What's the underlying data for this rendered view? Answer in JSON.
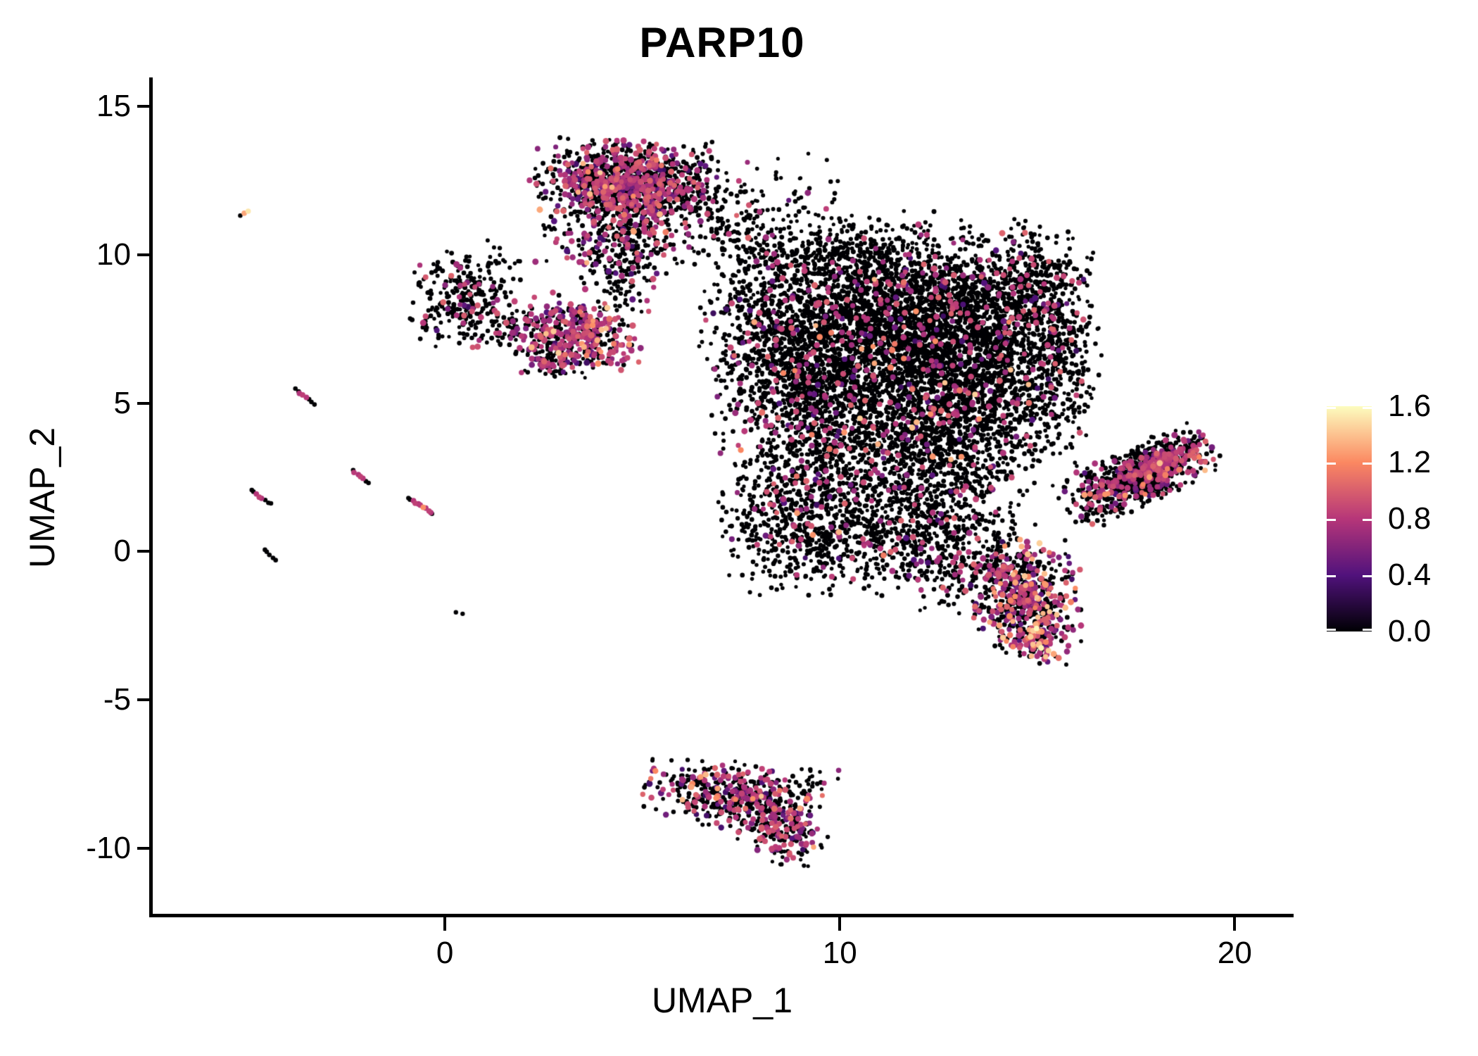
{
  "title": "PARP10",
  "x_axis": {
    "label": "UMAP_1",
    "tick_labels": [
      "0",
      "10",
      "20"
    ],
    "tick_values": [
      0,
      10,
      20
    ],
    "range": [
      -7.45,
      21.49
    ]
  },
  "y_axis": {
    "label": "UMAP_2",
    "tick_labels": [
      "15",
      "10",
      "5",
      "0",
      "-5",
      "-10"
    ],
    "tick_values": [
      15,
      10,
      5,
      0,
      -5,
      -10
    ],
    "range": [
      -12.26,
      15.93
    ]
  },
  "colorbar": {
    "tick_labels": [
      "1.6",
      "1.2",
      "0.8",
      "0.4",
      "0.0"
    ],
    "tick_values": [
      1.6,
      1.2,
      0.8,
      0.4,
      0.0
    ],
    "min": 0.0,
    "max": 1.6,
    "gradient_stops": [
      [
        "0.00",
        "#000004"
      ],
      [
        "0.25",
        "#51127c"
      ],
      [
        "0.50",
        "#b63679"
      ],
      [
        "0.75",
        "#fb8861"
      ],
      [
        "1.00",
        "#fcfdbf"
      ]
    ]
  },
  "chart_data": {
    "type": "scatter",
    "title": "PARP10",
    "xlabel": "UMAP_1",
    "ylabel": "UMAP_2",
    "xlim": [
      -7.45,
      21.49
    ],
    "ylim": [
      -12.26,
      15.93
    ],
    "grid": false,
    "legend_position": "right",
    "color_scale": {
      "name": "magma",
      "domain": [
        0,
        1.6
      ],
      "stops": [
        [
          0.0,
          "#000004"
        ],
        [
          0.25,
          "#51127c"
        ],
        [
          0.5,
          "#b63679"
        ],
        [
          0.75,
          "#fb8861"
        ],
        [
          1.0,
          "#fcfdbf"
        ]
      ]
    },
    "point_style": {
      "radius_black": 3.1,
      "radius_colored": 4.0
    },
    "seed": 42,
    "clusters": [
      {
        "name": "top-cluster-core",
        "n": 950,
        "cx": 4.55,
        "cy": 12.5,
        "sx": 1.05,
        "sy": 0.62,
        "rho": -0.1,
        "rot": 0,
        "colored_frac": 0.42,
        "hi_frac": 0.02
      },
      {
        "name": "top-cluster-neck",
        "n": 300,
        "cx": 4.3,
        "cy": 11.0,
        "sx": 0.85,
        "sy": 0.75,
        "rho": 0,
        "rot": 0,
        "colored_frac": 0.3,
        "hi_frac": 0.01
      },
      {
        "name": "top-cluster-tail",
        "n": 160,
        "cx": 4.5,
        "cy": 9.4,
        "sx": 0.5,
        "sy": 0.85,
        "rho": 0,
        "rot": 0,
        "colored_frac": 0.18,
        "hi_frac": 0.0
      },
      {
        "name": "top-right-spray",
        "n": 200,
        "cx": 6.3,
        "cy": 11.7,
        "sx": 1.05,
        "sy": 0.95,
        "rho": 0,
        "rot": 0,
        "colored_frac": 0.08,
        "hi_frac": 0.0
      },
      {
        "name": "top-right-spray2",
        "n": 90,
        "cx": 7.7,
        "cy": 10.4,
        "sx": 0.75,
        "sy": 0.75,
        "rho": 0,
        "rot": 0,
        "colored_frac": 0.05,
        "hi_frac": 0.0
      },
      {
        "name": "bridge-to-main",
        "n": 45,
        "cx": 8.6,
        "cy": 11.6,
        "sx": 0.9,
        "sy": 0.8,
        "rho": 0,
        "rot": 0,
        "colored_frac": 0.04,
        "hi_frac": 0.0
      },
      {
        "name": "magenta-cluster",
        "n": 430,
        "cx": 3.35,
        "cy": 7.25,
        "sx": 0.72,
        "sy": 0.62,
        "rho": -0.15,
        "rot": 0,
        "colored_frac": 0.5,
        "hi_frac": 0.05
      },
      {
        "name": "magenta-cluster-fringe",
        "n": 50,
        "cx": 2.6,
        "cy": 6.4,
        "sx": 0.4,
        "sy": 0.35,
        "rho": 0,
        "rot": 0,
        "colored_frac": 0.3,
        "hi_frac": 0.0
      },
      {
        "name": "left-island",
        "n": 260,
        "cx": 0.45,
        "cy": 8.5,
        "sx": 0.58,
        "sy": 0.72,
        "rho": 0,
        "rot": 0,
        "colored_frac": 0.13,
        "hi_frac": 0.0
      },
      {
        "name": "left-island-hook",
        "n": 60,
        "cx": 1.55,
        "cy": 7.5,
        "sx": 0.5,
        "sy": 0.28,
        "rho": 0,
        "rot": 0,
        "colored_frac": 0.2,
        "hi_frac": 0.0
      },
      {
        "name": "left-island-strays",
        "n": 30,
        "cx": 1.3,
        "cy": 9.6,
        "sx": 0.7,
        "sy": 0.5,
        "rho": 0,
        "rot": 0,
        "colored_frac": 0.05,
        "hi_frac": 0.0
      },
      {
        "name": "main-lobe-upper",
        "n": 2500,
        "cx": 11.3,
        "cy": 7.7,
        "sx": 1.85,
        "sy": 1.45,
        "rho": 0,
        "rot": 0,
        "colored_frac": 0.065,
        "hi_frac": 0.005
      },
      {
        "name": "main-lobe-right",
        "n": 1350,
        "cx": 13.2,
        "cy": 6.2,
        "sx": 1.25,
        "sy": 1.5,
        "rho": 0,
        "rot": 0,
        "colored_frac": 0.07,
        "hi_frac": 0.005
      },
      {
        "name": "main-lobe-left",
        "n": 1150,
        "cx": 9.4,
        "cy": 5.1,
        "sx": 1.15,
        "sy": 1.5,
        "rho": 0,
        "rot": 0,
        "colored_frac": 0.09,
        "hi_frac": 0.008
      },
      {
        "name": "main-lobe-mid-low",
        "n": 900,
        "cx": 12.3,
        "cy": 3.3,
        "sx": 1.25,
        "sy": 1.25,
        "rho": 0,
        "rot": 0,
        "colored_frac": 0.08,
        "hi_frac": 0.006
      },
      {
        "name": "main-lobe-low-left",
        "n": 650,
        "cx": 9.0,
        "cy": 1.1,
        "sx": 0.95,
        "sy": 1.15,
        "rho": 0,
        "rot": 0,
        "colored_frac": 0.09,
        "hi_frac": 0.01
      },
      {
        "name": "main-lobe-low-right",
        "n": 520,
        "cx": 11.9,
        "cy": 0.6,
        "sx": 1.15,
        "sy": 0.95,
        "rho": 0,
        "rot": 0,
        "colored_frac": 0.09,
        "hi_frac": 0.008
      },
      {
        "name": "main-top-spray",
        "n": 330,
        "cx": 10.3,
        "cy": 9.9,
        "sx": 1.4,
        "sy": 0.75,
        "rho": 0,
        "rot": 0,
        "colored_frac": 0.05,
        "hi_frac": 0.0
      },
      {
        "name": "right-arc-upper",
        "n": 400,
        "cx": 14.7,
        "cy": 9.1,
        "sx": 0.75,
        "sy": 0.95,
        "rho": 0,
        "rot": 0,
        "colored_frac": 0.08,
        "hi_frac": 0.0
      },
      {
        "name": "right-arc-edge",
        "n": 250,
        "cx": 15.6,
        "cy": 6.9,
        "sx": 0.45,
        "sy": 1.25,
        "rho": 0,
        "rot": 0,
        "colored_frac": 0.12,
        "hi_frac": 0.0
      },
      {
        "name": "main-gap-left",
        "n": 280,
        "cx": 8.1,
        "cy": 7.9,
        "sx": 0.75,
        "sy": 1.15,
        "rho": 0,
        "rot": 0,
        "colored_frac": 0.1,
        "hi_frac": 0.0
      },
      {
        "name": "spray-to-right-lobe",
        "n": 110,
        "cx": 14.9,
        "cy": 4.4,
        "sx": 0.85,
        "sy": 0.85,
        "rho": 0,
        "rot": 0,
        "colored_frac": 0.1,
        "hi_frac": 0.0
      },
      {
        "name": "spray-to-lower-blob",
        "n": 140,
        "cx": 13.3,
        "cy": -0.7,
        "sx": 0.85,
        "sy": 0.75,
        "rho": 0,
        "rot": 0,
        "colored_frac": 0.12,
        "hi_frac": 0.0
      },
      {
        "name": "right-lobe",
        "n": 880,
        "cx": 17.55,
        "cy": 2.55,
        "sx": 0.95,
        "sy": 0.42,
        "rho": 0,
        "rot": 33,
        "colored_frac": 0.2,
        "hi_frac": 0.012
      },
      {
        "name": "right-lobe-magenta-streak",
        "n": 90,
        "cx": 18.3,
        "cy": 3.1,
        "sx": 0.55,
        "sy": 0.18,
        "rho": 0,
        "rot": 30,
        "colored_frac": 0.85,
        "hi_frac": 0.0
      },
      {
        "name": "lower-blob",
        "n": 560,
        "cx": 14.75,
        "cy": -1.55,
        "sx": 0.6,
        "sy": 0.9,
        "rho": 0,
        "rot": 0,
        "colored_frac": 0.3,
        "hi_frac": 0.09
      },
      {
        "name": "lower-blob-tip",
        "n": 90,
        "cx": 15.1,
        "cy": -3.0,
        "sx": 0.33,
        "sy": 0.38,
        "rho": 0,
        "rot": 0,
        "colored_frac": 0.4,
        "hi_frac": 0.15,
        "super_frac": 0.02
      },
      {
        "name": "lower-blob-fringe",
        "n": 35,
        "cx": 13.8,
        "cy": -0.6,
        "sx": 0.4,
        "sy": 0.4,
        "rho": 0,
        "rot": 0,
        "colored_frac": 0.2,
        "hi_frac": 0.0
      },
      {
        "name": "bottom-cluster",
        "n": 430,
        "cx": 7.3,
        "cy": -8.2,
        "sx": 1.0,
        "sy": 0.52,
        "rho": -0.25,
        "rot": 0,
        "colored_frac": 0.3,
        "hi_frac": 0.04
      },
      {
        "name": "bottom-cluster-lower",
        "n": 190,
        "cx": 8.55,
        "cy": -9.4,
        "sx": 0.5,
        "sy": 0.55,
        "rho": 0,
        "rot": 0,
        "colored_frac": 0.33,
        "hi_frac": 0.06
      },
      {
        "name": "bottom-cluster-tail",
        "n": 22,
        "cx": 9.35,
        "cy": -7.7,
        "sx": 0.35,
        "sy": 0.2,
        "rho": 0,
        "rot": 0,
        "colored_frac": 0.1,
        "hi_frac": 0.0
      }
    ],
    "streaks": [
      {
        "name": "satellite-streak-1",
        "x1": -3.8,
        "y1": 5.5,
        "x2": -3.3,
        "y2": 4.95,
        "values": [
          0,
          0,
          0.78,
          0.84,
          0.8,
          0,
          0,
          0
        ]
      },
      {
        "name": "satellite-streak-2",
        "x1": -4.9,
        "y1": 2.05,
        "x2": -4.42,
        "y2": 1.6,
        "values": [
          0,
          0,
          0.8,
          0.85,
          0.76,
          0,
          0,
          0
        ]
      },
      {
        "name": "satellite-streak-3",
        "x1": -2.35,
        "y1": 2.75,
        "x2": -1.95,
        "y2": 2.3,
        "values": [
          0,
          0.82,
          0.78,
          0.85,
          0.8,
          0,
          0
        ]
      },
      {
        "name": "satellite-streak-4",
        "x1": -0.95,
        "y1": 1.8,
        "x2": -0.3,
        "y2": 1.28,
        "values": [
          0,
          0,
          0.8,
          0.85,
          0.78,
          0.82,
          1.22,
          0.8,
          0.85,
          0.78,
          0
        ]
      },
      {
        "name": "satellite-streak-5",
        "x1": -4.55,
        "y1": 0.05,
        "x2": -4.3,
        "y2": -0.3,
        "values": [
          0,
          0,
          0,
          0,
          0
        ]
      }
    ],
    "singles": [
      {
        "x": -5.18,
        "y": 11.32,
        "v": 0
      },
      {
        "x": -5.08,
        "y": 11.4,
        "v": 1.3
      },
      {
        "x": -4.98,
        "y": 11.47,
        "v": 1.52
      },
      {
        "x": 0.28,
        "y": -2.05,
        "v": 0
      },
      {
        "x": 0.45,
        "y": -2.1,
        "v": 0
      }
    ]
  }
}
